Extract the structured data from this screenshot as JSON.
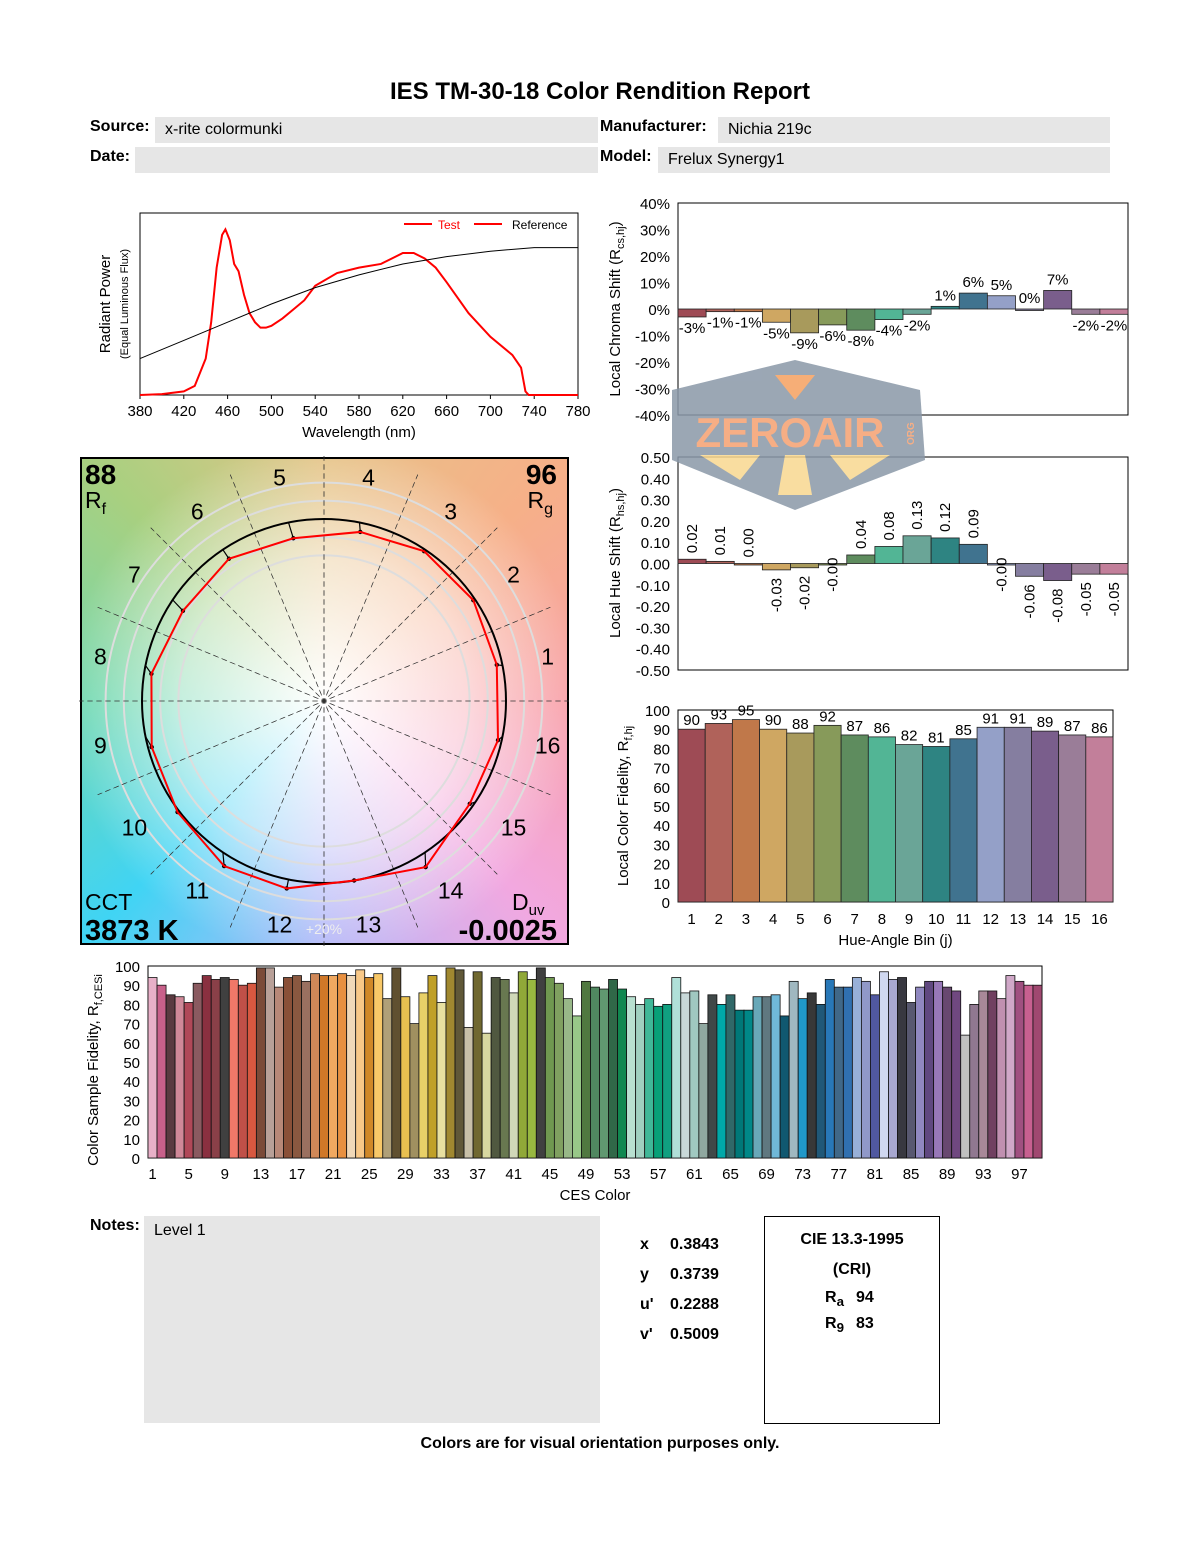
{
  "header": {
    "title": "IES TM-30-18 Color Rendition Report",
    "source_label": "Source:",
    "source": "x-rite colormunki",
    "manufacturer_label": "Manufacturer:",
    "manufacturer": "Nichia 219c",
    "date_label": "Date:",
    "date": "",
    "model_label": "Model:",
    "model": "Frelux Synergy1"
  },
  "watermark": {
    "text": "ZEROAIR",
    "suffix": "ORG"
  },
  "chart_data": [
    {
      "type": "line",
      "id": "spectrum",
      "xlabel": "Wavelength (nm)",
      "ylabel": "Radiant Power",
      "ylabel2": "(Equal Luminous Flux)",
      "xlim": [
        380,
        780
      ],
      "xticks": [
        380,
        420,
        460,
        500,
        540,
        580,
        620,
        660,
        700,
        740,
        780
      ],
      "legend": "top-right",
      "series": [
        {
          "name": "Test",
          "color": "#ff0000",
          "points": [
            [
              380,
              0
            ],
            [
              400,
              0.005
            ],
            [
              420,
              0.02
            ],
            [
              430,
              0.05
            ],
            [
              440,
              0.2
            ],
            [
              445,
              0.4
            ],
            [
              450,
              0.7
            ],
            [
              455,
              0.88
            ],
            [
              458,
              0.91
            ],
            [
              462,
              0.85
            ],
            [
              466,
              0.72
            ],
            [
              470,
              0.68
            ],
            [
              475,
              0.55
            ],
            [
              480,
              0.45
            ],
            [
              485,
              0.4
            ],
            [
              490,
              0.37
            ],
            [
              495,
              0.37
            ],
            [
              500,
              0.38
            ],
            [
              510,
              0.42
            ],
            [
              520,
              0.47
            ],
            [
              530,
              0.52
            ],
            [
              540,
              0.6
            ],
            [
              560,
              0.67
            ],
            [
              580,
              0.7
            ],
            [
              600,
              0.72
            ],
            [
              610,
              0.75
            ],
            [
              620,
              0.78
            ],
            [
              630,
              0.78
            ],
            [
              640,
              0.75
            ],
            [
              650,
              0.7
            ],
            [
              660,
              0.62
            ],
            [
              680,
              0.45
            ],
            [
              700,
              0.32
            ],
            [
              720,
              0.22
            ],
            [
              728,
              0.15
            ],
            [
              732,
              0.02
            ],
            [
              735,
              0
            ],
            [
              780,
              0
            ]
          ]
        },
        {
          "name": "Reference",
          "color": "#000000",
          "points": [
            [
              380,
              0.2
            ],
            [
              420,
              0.3
            ],
            [
              460,
              0.4
            ],
            [
              500,
              0.5
            ],
            [
              540,
              0.59
            ],
            [
              580,
              0.66
            ],
            [
              620,
              0.72
            ],
            [
              660,
              0.76
            ],
            [
              700,
              0.79
            ],
            [
              740,
              0.81
            ],
            [
              780,
              0.81
            ]
          ]
        }
      ]
    },
    {
      "type": "vector",
      "id": "color-vector-graphic",
      "Rf_label": "R",
      "Rf_sub": "f",
      "Rf": "88",
      "Rg_label": "R",
      "Rg_sub": "g",
      "Rg": "96",
      "cct_label": "CCT",
      "cct": "3873 K",
      "duv_label": "D",
      "duv_sub": "uv",
      "duv": "-0.0025",
      "ring_label": "+20%",
      "bins": [
        "1",
        "2",
        "3",
        "4",
        "5",
        "6",
        "7",
        "8",
        "9",
        "10",
        "11",
        "12",
        "13",
        "14",
        "15",
        "16"
      ]
    },
    {
      "type": "bar",
      "id": "chroma-shift",
      "ylabel": "Local Chroma Shift (R",
      "ylabel_sub": "cs,hj",
      "ylabel_end": ")",
      "ylim": [
        -40,
        40
      ],
      "yticks": [
        "40%",
        "30%",
        "20%",
        "10%",
        "0%",
        "-10%",
        "-20%",
        "-30%",
        "-40%"
      ],
      "values": [
        -3,
        -1,
        -1,
        -5,
        -9,
        -6,
        -8,
        -4,
        -2,
        1,
        6,
        5,
        0,
        7,
        -2,
        -2
      ],
      "labels": [
        "-3%",
        "-1%",
        "-1%",
        "-5%",
        "-9%",
        "-6%",
        "-8%",
        "-4%",
        "-2%",
        "1%",
        "6%",
        "5%",
        "0%",
        "7%",
        "-2%",
        "-2%"
      ]
    },
    {
      "type": "bar",
      "id": "hue-shift",
      "ylabel": "Local Hue Shift (R",
      "ylabel_sub": "hs,hj",
      "ylabel_end": ")",
      "ylim": [
        -0.5,
        0.5
      ],
      "yticks": [
        "0.50",
        "0.40",
        "0.30",
        "0.20",
        "0.10",
        "0.00",
        "-0.10",
        "-0.20",
        "-0.30",
        "-0.40",
        "-0.50"
      ],
      "values": [
        0.02,
        0.01,
        0.0,
        -0.03,
        -0.02,
        -0.0,
        0.04,
        0.08,
        0.13,
        0.12,
        0.09,
        -0.0,
        -0.06,
        -0.08,
        -0.05,
        -0.05
      ],
      "labels": [
        "0.02",
        "0.01",
        "0.00",
        "-0.03",
        "-0.02",
        "-0.00",
        "0.04",
        "0.08",
        "0.13",
        "0.12",
        "0.09",
        "-0.00",
        "-0.06",
        "-0.08",
        "-0.05",
        "-0.05"
      ]
    },
    {
      "type": "bar",
      "id": "local-fidelity",
      "ylabel": "Local Color Fidelity, R",
      "ylabel_sub": "f,hj",
      "xlabel": "Hue-Angle Bin (j)",
      "ylim": [
        0,
        100
      ],
      "yticks": [
        0,
        10,
        20,
        30,
        40,
        50,
        60,
        70,
        80,
        90,
        100
      ],
      "categories": [
        "1",
        "2",
        "3",
        "4",
        "5",
        "6",
        "7",
        "8",
        "9",
        "10",
        "11",
        "12",
        "13",
        "14",
        "15",
        "16"
      ],
      "values": [
        90,
        93,
        95,
        90,
        88,
        92,
        87,
        86,
        82,
        81,
        85,
        91,
        91,
        89,
        87,
        86
      ]
    },
    {
      "type": "bar",
      "id": "ces-fidelity",
      "ylabel": "Color Sample Fidelity, R",
      "ylabel_sub": "f,CESi",
      "xlabel": "CES Color",
      "ylim": [
        0,
        100
      ],
      "yticks": [
        0,
        10,
        20,
        30,
        40,
        50,
        60,
        70,
        80,
        90,
        100
      ],
      "xticks": [
        1,
        5,
        9,
        13,
        17,
        21,
        25,
        29,
        33,
        37,
        41,
        45,
        49,
        53,
        57,
        61,
        65,
        69,
        73,
        77,
        81,
        85,
        89,
        93,
        97
      ],
      "values": [
        94,
        90,
        85,
        84,
        81,
        91,
        95,
        93,
        94,
        93,
        90,
        91,
        99,
        99,
        89,
        94,
        95,
        92,
        96,
        95,
        95,
        96,
        95,
        98,
        94,
        96,
        83,
        99,
        84,
        70,
        86,
        95,
        81,
        99,
        98,
        68,
        97,
        65,
        94,
        93,
        86,
        97,
        93,
        99,
        94,
        91,
        83,
        74,
        92,
        89,
        88,
        93,
        88,
        84,
        80,
        83,
        79,
        80,
        94,
        86,
        87,
        70,
        85,
        80,
        85,
        77,
        77,
        84,
        84,
        85,
        74,
        92,
        83,
        86,
        80,
        93,
        89,
        89,
        94,
        92,
        85,
        97,
        93,
        94,
        81,
        89,
        92,
        92,
        89,
        87,
        64,
        80,
        87,
        87,
        83,
        95,
        92,
        90,
        90
      ],
      "colors": [
        "#e8b0c8",
        "#c8608a",
        "#5a3a40",
        "#d08898",
        "#b04858",
        "#8a5a60",
        "#8a3040",
        "#8a4048",
        "#404040",
        "#f07868",
        "#c05048",
        "#d85840",
        "#7a4a38",
        "#b8a098",
        "#b88878",
        "#8a5038",
        "#8a5840",
        "#9a7060",
        "#d08858",
        "#d07828",
        "#f0a860",
        "#e89040",
        "#f0d8b8",
        "#f8c888",
        "#d08828",
        "#f8c868",
        "#b0a078",
        "#605030",
        "#e8c050",
        "#a09060",
        "#e8d068",
        "#c0a028",
        "#e8e0a0",
        "#a08830",
        "#605838",
        "#c8c0a8",
        "#706830",
        "#d8d8a0",
        "#505840",
        "#687850",
        "#d0d8b8",
        "#90a838",
        "#98b840",
        "#404040",
        "#709850",
        "#80a060",
        "#98b888",
        "#98c888",
        "#507840",
        "#508860",
        "#609870",
        "#306848",
        "#108850",
        "#b8e0d0",
        "#a0d0c0",
        "#40b898",
        "#08a078",
        "#10a080",
        "#b0e0d8",
        "#c8d8d8",
        "#a0c8c0",
        "#90a8a0",
        "#404848",
        "#00a8a8",
        "#306868",
        "#007878",
        "#008888",
        "#68a8b8",
        "#607880",
        "#70b8d8",
        "#105870",
        "#a0b8c0",
        "#2098c8",
        "#383838",
        "#205878",
        "#2878b8",
        "#406888",
        "#3070b0",
        "#98b0d8",
        "#9098c8",
        "#5058a0",
        "#d0d8f0",
        "#a8a8d0",
        "#383840",
        "#585870",
        "#9088c0",
        "#604880",
        "#9878b8",
        "#684870",
        "#704880",
        "#c0c0c0",
        "#907890",
        "#a88898",
        "#704060",
        "#c090b0",
        "#d0a8c8",
        "#a05080",
        "#c86090",
        "#a04870"
      ]
    }
  ],
  "bin_colors": [
    "#9e4b55",
    "#b0625a",
    "#c0784a",
    "#cfa762",
    "#a89a5c",
    "#879a5a",
    "#5e8c5e",
    "#52b595",
    "#6aa597",
    "#2e8482",
    "#40738f",
    "#94a0c8",
    "#857ea0",
    "#7a5e8c",
    "#9a7d98",
    "#c27f9a"
  ],
  "notes": {
    "label": "Notes:",
    "text": "Level 1"
  },
  "chromaticity": [
    {
      "label": "x",
      "value": "0.3843"
    },
    {
      "label": "y",
      "value": "0.3739"
    },
    {
      "label": "u'",
      "value": "0.2288"
    },
    {
      "label": "v'",
      "value": "0.5009"
    }
  ],
  "cri": {
    "title": "CIE 13.3-1995",
    "subtitle": "(CRI)",
    "ra_label": "R",
    "ra_sub": "a",
    "ra": "94",
    "r9_label": "R",
    "r9_sub": "9",
    "r9": "83"
  },
  "footer": "Colors are for visual orientation purposes only."
}
